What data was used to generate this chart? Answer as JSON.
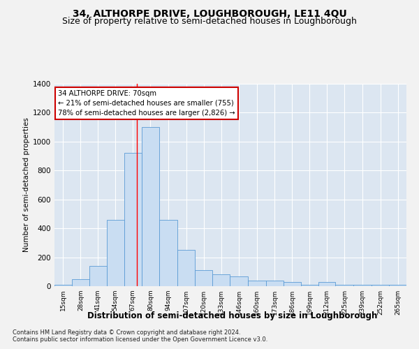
{
  "title": "34, ALTHORPE DRIVE, LOUGHBOROUGH, LE11 4QU",
  "subtitle": "Size of property relative to semi-detached houses in Loughborough",
  "xlabel": "Distribution of semi-detached houses by size in Loughborough",
  "ylabel": "Number of semi-detached properties",
  "footer_line1": "Contains HM Land Registry data © Crown copyright and database right 2024.",
  "footer_line2": "Contains public sector information licensed under the Open Government Licence v3.0.",
  "annotation_title": "34 ALTHORPE DRIVE: 70sqm",
  "annotation_line1": "← 21% of semi-detached houses are smaller (755)",
  "annotation_line2": "78% of semi-detached houses are larger (2,826) →",
  "property_size": 70,
  "bar_labels": [
    "15sqm",
    "28sqm",
    "41sqm",
    "54sqm",
    "67sqm",
    "80sqm",
    "94sqm",
    "107sqm",
    "120sqm",
    "133sqm",
    "146sqm",
    "160sqm",
    "173sqm",
    "186sqm",
    "199sqm",
    "212sqm",
    "225sqm",
    "239sqm",
    "252sqm",
    "265sqm"
  ],
  "bar_edges": [
    8.5,
    21.5,
    34.5,
    47.5,
    60.5,
    73.5,
    87,
    100.5,
    113.5,
    126.5,
    139.5,
    153,
    166.5,
    179.5,
    192.5,
    205.5,
    218.5,
    232,
    245.5,
    258.5,
    271.5
  ],
  "bar_heights": [
    10,
    50,
    140,
    460,
    920,
    1100,
    460,
    250,
    110,
    80,
    70,
    40,
    40,
    30,
    10,
    30,
    10,
    10,
    10,
    10
  ],
  "bar_color": "#c9ddf2",
  "bar_edge_color": "#5b9bd5",
  "red_line_x": 70,
  "ylim": [
    0,
    1400
  ],
  "yticks": [
    0,
    200,
    400,
    600,
    800,
    1000,
    1200,
    1400
  ],
  "plot_bg_color": "#dce6f1",
  "fig_bg_color": "#f2f2f2",
  "grid_color": "#ffffff",
  "title_fontsize": 10,
  "subtitle_fontsize": 9,
  "annotation_box_color": "#ffffff",
  "annotation_box_edge": "#cc0000"
}
